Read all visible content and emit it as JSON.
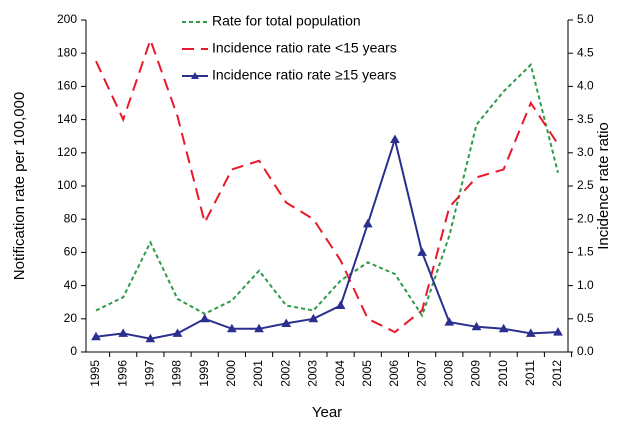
{
  "chart_data": {
    "type": "line",
    "categories": [
      "1995",
      "1996",
      "1997",
      "1998",
      "1999",
      "2000",
      "2001",
      "2002",
      "2003",
      "2004",
      "2005",
      "2006",
      "2007",
      "2008",
      "2009",
      "2010",
      "2011",
      "2012"
    ],
    "series": [
      {
        "name": "Rate for total population",
        "color": "#2e9a4a",
        "dash": "dashed",
        "values": [
          25,
          33,
          66,
          32,
          23,
          31,
          49,
          28,
          25,
          43,
          54,
          47,
          22,
          70,
          137,
          157,
          173,
          108
        ]
      },
      {
        "name": "Incidence ratio rate <15 years",
        "color": "#e8192c",
        "dash": "dashed",
        "axis": "y2",
        "values": [
          4.38,
          3.5,
          4.7,
          3.55,
          1.95,
          2.75,
          2.88,
          2.25,
          2.0,
          1.38,
          0.5,
          0.3,
          0.63,
          2.18,
          2.63,
          2.75,
          3.75,
          3.13
        ]
      },
      {
        "name": "Incidence ratio rate ≥15 years",
        "color": "#2b2f8f",
        "dash": "solid",
        "marker": "triangle",
        "axis": "y2",
        "values": [
          0.23,
          0.28,
          0.2,
          0.28,
          0.5,
          0.35,
          0.35,
          0.43,
          0.5,
          0.7,
          1.93,
          3.2,
          1.5,
          0.45,
          0.38,
          0.35,
          0.28,
          0.3
        ]
      }
    ],
    "xlabel": "Year",
    "ylabel": "Notification rate per 100,000",
    "y2label": "Incidence rate ratio",
    "ylim": [
      0,
      200
    ],
    "yticks": [
      0,
      20,
      40,
      60,
      80,
      100,
      120,
      140,
      160,
      180,
      200
    ],
    "y2lim": [
      0,
      5
    ],
    "y2ticks": [
      {
        "value": 0,
        "label": "0.0"
      },
      {
        "value": 0.5,
        "label": "0.5"
      },
      {
        "value": 1,
        "label": "1.0"
      },
      {
        "value": 1.5,
        "label": "1.5"
      },
      {
        "value": 2,
        "label": "2.0"
      },
      {
        "value": 2.5,
        "label": "2.5"
      },
      {
        "value": 3,
        "label": "3.0"
      },
      {
        "value": 3.5,
        "label": "3.5"
      },
      {
        "value": 4,
        "label": "4.0"
      },
      {
        "value": 4.5,
        "label": "4.5"
      },
      {
        "value": 5,
        "label": "5.0"
      }
    ],
    "legend": "upper center",
    "grid": false
  }
}
